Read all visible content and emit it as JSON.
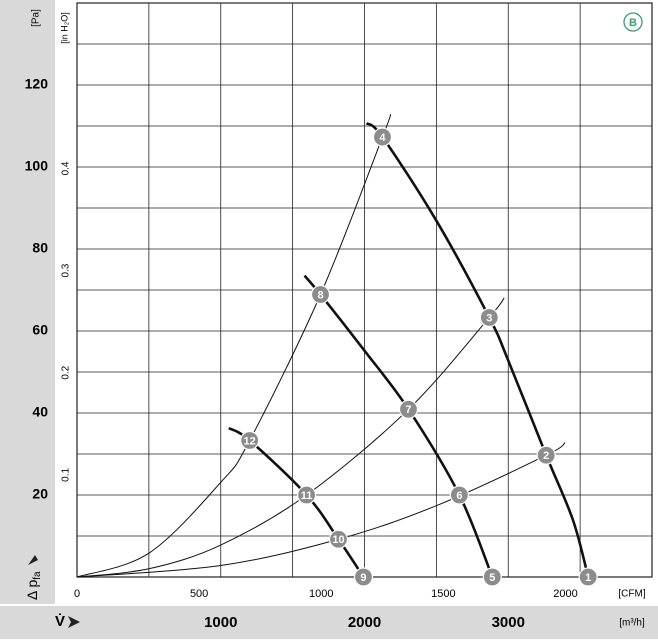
{
  "chart_data": {
    "type": "fan-curve",
    "badge": "B",
    "y_unit": "[Pa]",
    "y2_unit": "[in H₂O]",
    "x2_unit": "[CFM]",
    "x_unit": "[m³/h]",
    "y_label": "Δ p",
    "y_label_sub": "fa",
    "x_label": "V̇",
    "xlim": [
      0,
      4000
    ],
    "xticks": [
      1000,
      2000,
      3000
    ],
    "xgrid": [
      500,
      1000,
      1500,
      2000,
      2500,
      3000,
      3500
    ],
    "x2lim": [
      0,
      2354
    ],
    "x2ticks": [
      0,
      500,
      1000,
      1500,
      2000
    ],
    "ylim": [
      0,
      140
    ],
    "yticks": [
      20,
      40,
      60,
      80,
      100,
      120
    ],
    "ygrid": [
      10,
      20,
      30,
      40,
      50,
      60,
      70,
      80,
      90,
      100,
      110,
      120,
      130
    ],
    "y2lim": [
      0,
      0.562
    ],
    "y2ticks": [
      0.1,
      0.2,
      0.3,
      0.4
    ],
    "series": [
      {
        "kind": "fan",
        "x": [
          2014,
          2125,
          2500,
          2868,
          3000,
          3264,
          3450,
          3556
        ],
        "y": [
          110.7,
          107.3,
          86.9,
          63.3,
          52.8,
          29.7,
          13.9,
          0
        ]
      },
      {
        "kind": "fan",
        "x": [
          1583,
          1694,
          2000,
          2306,
          2660,
          2889
        ],
        "y": [
          73.5,
          68.9,
          55.2,
          40.9,
          20,
          0
        ]
      },
      {
        "kind": "fan",
        "x": [
          1056,
          1201,
          1597,
          1819,
          1993
        ],
        "y": [
          36.3,
          33.3,
          20,
          9.2,
          0
        ]
      },
      {
        "kind": "system",
        "x": [
          0,
          500,
          1000,
          1201,
          1694,
          2125,
          2181
        ],
        "y": [
          0,
          5.8,
          23.1,
          33.3,
          68.9,
          107.3,
          112.9
        ]
      },
      {
        "kind": "system",
        "x": [
          0,
          500,
          1000,
          1597,
          2306,
          2868,
          2972
        ],
        "y": [
          0,
          2.0,
          7.8,
          20,
          40.9,
          63.3,
          68.1
        ]
      },
      {
        "kind": "system",
        "x": [
          0,
          1000,
          1819,
          2500,
          3264,
          3396
        ],
        "y": [
          0,
          2.8,
          9.2,
          17.4,
          29.7,
          32.8
        ]
      }
    ],
    "points": {
      "labels": [
        "1",
        "2",
        "3",
        "4",
        "5",
        "6",
        "7",
        "8",
        "9",
        "10",
        "11",
        "12"
      ],
      "x": [
        3556,
        3264,
        2868,
        2125,
        2889,
        2660,
        2306,
        1694,
        1993,
        1819,
        1597,
        1201
      ],
      "y": [
        0,
        29.7,
        63.3,
        107.3,
        0,
        20,
        40.9,
        68.9,
        0,
        9.2,
        20,
        33.3
      ]
    }
  }
}
